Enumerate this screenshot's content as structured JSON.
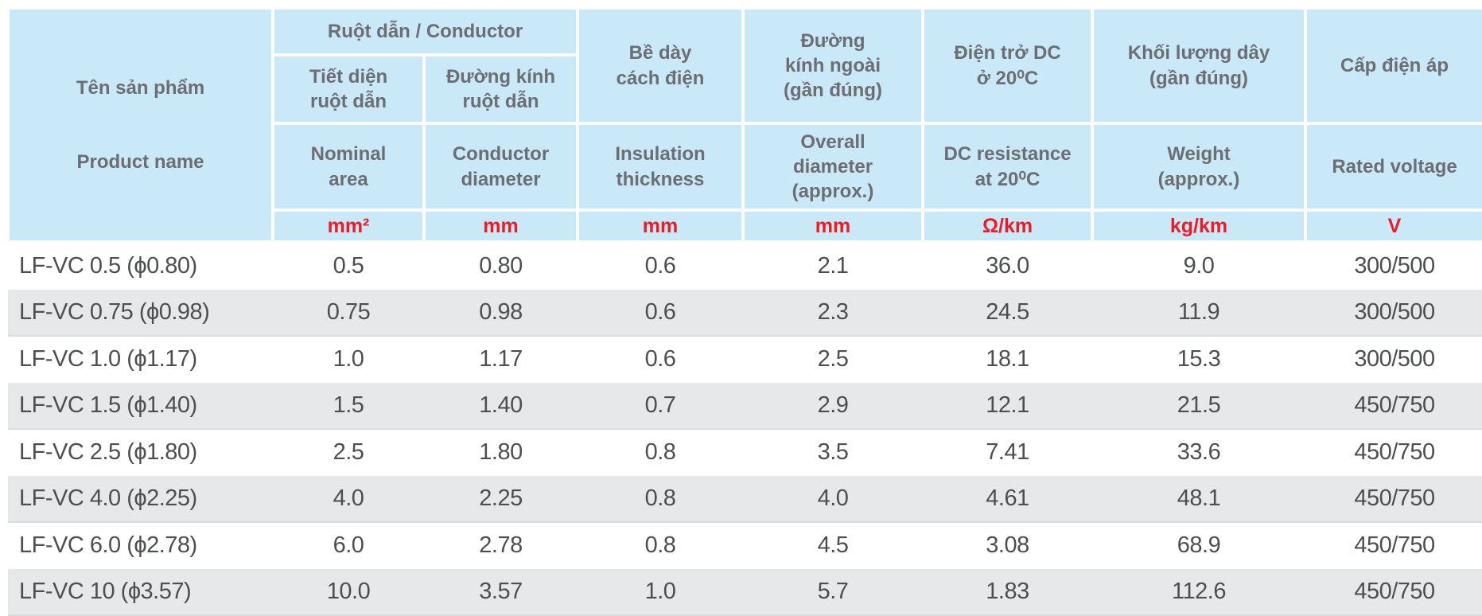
{
  "colors": {
    "header_bg": "#c9e8f8",
    "alt_row_bg": "#e7e8e9",
    "header_text": "#6d6e71",
    "unit_text": "#ed1c24",
    "body_text": "#4d4e50"
  },
  "header": {
    "product_name_vi": "Tên sản phẩm",
    "product_name_en": "Product name",
    "conductor_group": "Ruột dẫn / Conductor",
    "columns": [
      {
        "vi": "Tiết diện\nruột dẫn",
        "en": "Nominal\narea",
        "unit": "mm²"
      },
      {
        "vi": "Đường kính\nruột dẫn",
        "en": "Conductor\ndiameter",
        "unit": "mm"
      },
      {
        "vi": "Bề dày\ncách điện",
        "en": "Insulation\nthickness",
        "unit": "mm"
      },
      {
        "vi": "Đường\nkính ngoài\n(gần đúng)",
        "en": "Overall\ndiameter\n(approx.)",
        "unit": "mm"
      },
      {
        "vi": "Điện trở DC\nở 20⁰C",
        "en": "DC resistance\nat 20⁰C",
        "unit": "Ω/km"
      },
      {
        "vi": "Khối lượng dây\n(gần đúng)",
        "en": "Weight\n(approx.)",
        "unit": "kg/km"
      },
      {
        "vi": "Cấp điện áp",
        "en": "Rated voltage",
        "unit": "V"
      }
    ]
  },
  "rows": [
    {
      "name": "LF-VC 0.5 (ϕ0.80)",
      "values": [
        "0.5",
        "0.80",
        "0.6",
        "2.1",
        "36.0",
        "9.0",
        "300/500"
      ]
    },
    {
      "name": "LF-VC 0.75 (ϕ0.98)",
      "values": [
        "0.75",
        "0.98",
        "0.6",
        "2.3",
        "24.5",
        "11.9",
        "300/500"
      ]
    },
    {
      "name": "LF-VC 1.0 (ϕ1.17)",
      "values": [
        "1.0",
        "1.17",
        "0.6",
        "2.5",
        "18.1",
        "15.3",
        "300/500"
      ]
    },
    {
      "name": "LF-VC 1.5 (ϕ1.40)",
      "values": [
        "1.5",
        "1.40",
        "0.7",
        "2.9",
        "12.1",
        "21.5",
        "450/750"
      ]
    },
    {
      "name": "LF-VC 2.5 (ϕ1.80)",
      "values": [
        "2.5",
        "1.80",
        "0.8",
        "3.5",
        "7.41",
        "33.6",
        "450/750"
      ]
    },
    {
      "name": "LF-VC 4.0 (ϕ2.25)",
      "values": [
        "4.0",
        "2.25",
        "0.8",
        "4.0",
        "4.61",
        "48.1",
        "450/750"
      ]
    },
    {
      "name": "LF-VC 6.0 (ϕ2.78)",
      "values": [
        "6.0",
        "2.78",
        "0.8",
        "4.5",
        "3.08",
        "68.9",
        "450/750"
      ]
    },
    {
      "name": "LF-VC 10 (ϕ3.57)",
      "values": [
        "10.0",
        "3.57",
        "1.0",
        "5.7",
        "1.83",
        "112.6",
        "450/750"
      ]
    }
  ]
}
